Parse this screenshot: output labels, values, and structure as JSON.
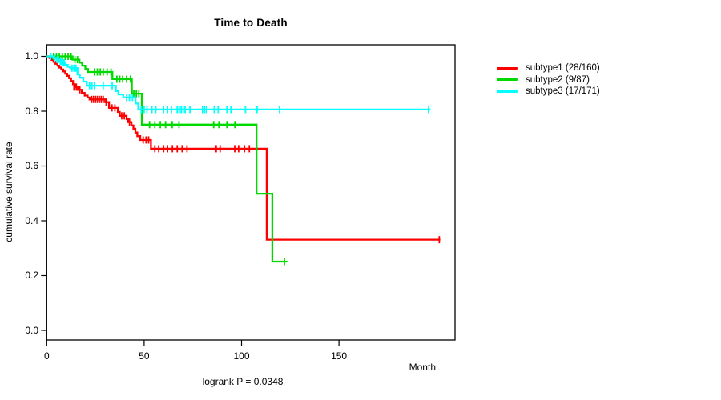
{
  "window": {
    "title": "Time to Death"
  },
  "header": {
    "title": "Time to Death"
  },
  "footer": {
    "logrank_text": "logrank P = 0.0348"
  },
  "axes": {
    "x": {
      "title": "Month",
      "tick_labels": [
        "0",
        "50",
        "100",
        "150"
      ]
    },
    "y": {
      "title": "cumulative survival rate",
      "tick_labels": [
        "1.0",
        "0.8",
        "0.6",
        "0.4",
        "0.2",
        "0.0"
      ]
    }
  },
  "legend": {
    "items": [
      {
        "label": "subtype1 (28/160)",
        "color": "#ff0000"
      },
      {
        "label": "subtype2 (9/87)",
        "color": "#00d900"
      },
      {
        "label": "subtype3 (17/171)",
        "color": "#00ffff"
      }
    ]
  },
  "chart_data": {
    "type": "line",
    "subtype": "kaplan-meier-step",
    "title": "Time to Death",
    "xlabel": "Month",
    "ylabel": "cumulative survival rate",
    "xlim": [
      0,
      210
    ],
    "ylim": [
      0.0,
      1.0
    ],
    "x_ticks": [
      0,
      50,
      100,
      150
    ],
    "y_ticks": [
      1.0,
      0.8,
      0.6,
      0.4,
      0.2,
      0.0
    ],
    "grid": false,
    "legend_position": "right-outside",
    "annotations": [
      "logrank P = 0.0348"
    ],
    "frame_color": "#000000",
    "series": [
      {
        "name": "subtype1",
        "label": "subtype1 (28/160)",
        "color": "#ff0000",
        "events": 28,
        "n": 160,
        "points": [
          [
            0,
            1.0
          ],
          [
            1.5,
            0.994
          ],
          [
            2.5,
            0.987
          ],
          [
            3.5,
            0.98
          ],
          [
            4.5,
            0.973
          ],
          [
            5.5,
            0.966
          ],
          [
            6.5,
            0.959
          ],
          [
            7.5,
            0.952
          ],
          [
            8.5,
            0.945
          ],
          [
            9.5,
            0.937
          ],
          [
            10.5,
            0.929
          ],
          [
            11.5,
            0.92
          ],
          [
            12.5,
            0.91
          ],
          [
            13.5,
            0.898
          ],
          [
            14.5,
            0.888
          ],
          [
            16,
            0.878
          ],
          [
            18,
            0.867
          ],
          [
            19.5,
            0.857
          ],
          [
            21,
            0.85
          ],
          [
            22,
            0.843
          ],
          [
            30,
            0.833
          ],
          [
            32,
            0.812
          ],
          [
            36.5,
            0.797
          ],
          [
            37.5,
            0.783
          ],
          [
            41,
            0.771
          ],
          [
            41.8,
            0.76
          ],
          [
            43.5,
            0.748
          ],
          [
            44.5,
            0.736
          ],
          [
            45.5,
            0.722
          ],
          [
            46.5,
            0.709
          ],
          [
            48,
            0.695
          ],
          [
            53.5,
            0.663
          ],
          [
            112.9,
            0.331
          ]
        ],
        "end": [
          202,
          0.331
        ],
        "censors": [
          [
            14,
            0.888
          ],
          [
            15.2,
            0.888
          ],
          [
            17,
            0.878
          ],
          [
            23,
            0.843
          ],
          [
            24,
            0.843
          ],
          [
            25,
            0.843
          ],
          [
            26,
            0.843
          ],
          [
            27,
            0.843
          ],
          [
            28,
            0.843
          ],
          [
            29,
            0.843
          ],
          [
            30.5,
            0.833
          ],
          [
            33.5,
            0.812
          ],
          [
            35,
            0.812
          ],
          [
            38.5,
            0.783
          ],
          [
            39.8,
            0.783
          ],
          [
            42.5,
            0.76
          ],
          [
            49.5,
            0.695
          ],
          [
            51,
            0.695
          ],
          [
            52.3,
            0.695
          ],
          [
            55.5,
            0.663
          ],
          [
            57.5,
            0.663
          ],
          [
            60,
            0.663
          ],
          [
            62,
            0.663
          ],
          [
            64.5,
            0.663
          ],
          [
            67,
            0.663
          ],
          [
            69.5,
            0.663
          ],
          [
            72,
            0.663
          ],
          [
            87,
            0.663
          ],
          [
            89,
            0.663
          ],
          [
            96.5,
            0.663
          ],
          [
            98.5,
            0.663
          ],
          [
            101.5,
            0.663
          ],
          [
            104,
            0.663
          ],
          [
            201.5,
            0.331
          ]
        ]
      },
      {
        "name": "subtype2",
        "label": "subtype2 (9/87)",
        "color": "#00d900",
        "events": 9,
        "n": 87,
        "points": [
          [
            0,
            1.0
          ],
          [
            13.3,
            0.988
          ],
          [
            16.8,
            0.977
          ],
          [
            18.2,
            0.966
          ],
          [
            19.8,
            0.954
          ],
          [
            21.2,
            0.943
          ],
          [
            33.7,
            0.917
          ],
          [
            43.7,
            0.864
          ],
          [
            48.8,
            0.751
          ],
          [
            107.7,
            0.499
          ],
          [
            115.8,
            0.251
          ]
        ],
        "end": [
          123.5,
          0.251
        ],
        "censors": [
          [
            3.5,
            1.0
          ],
          [
            5,
            1.0
          ],
          [
            6.5,
            1.0
          ],
          [
            8,
            1.0
          ],
          [
            9.5,
            1.0
          ],
          [
            11,
            1.0
          ],
          [
            12.5,
            1.0
          ],
          [
            14.5,
            0.988
          ],
          [
            15.8,
            0.988
          ],
          [
            24.5,
            0.943
          ],
          [
            26,
            0.943
          ],
          [
            27.5,
            0.943
          ],
          [
            29,
            0.943
          ],
          [
            31,
            0.943
          ],
          [
            33,
            0.943
          ],
          [
            36,
            0.917
          ],
          [
            37.5,
            0.917
          ],
          [
            39,
            0.917
          ],
          [
            41,
            0.917
          ],
          [
            43,
            0.917
          ],
          [
            44.7,
            0.864
          ],
          [
            46,
            0.864
          ],
          [
            47.3,
            0.864
          ],
          [
            52.8,
            0.751
          ],
          [
            55.5,
            0.751
          ],
          [
            58.3,
            0.751
          ],
          [
            61,
            0.751
          ],
          [
            64.4,
            0.751
          ],
          [
            67.9,
            0.751
          ],
          [
            85.7,
            0.751
          ],
          [
            88.4,
            0.751
          ],
          [
            92.5,
            0.751
          ],
          [
            96.6,
            0.751
          ],
          [
            122,
            0.251
          ]
        ]
      },
      {
        "name": "subtype3",
        "label": "subtype3 (17/171)",
        "color": "#00ffff",
        "events": 17,
        "n": 171,
        "points": [
          [
            0,
            1.0
          ],
          [
            3.5,
            0.994
          ],
          [
            5,
            0.988
          ],
          [
            6.5,
            0.982
          ],
          [
            8,
            0.976
          ],
          [
            9.5,
            0.969
          ],
          [
            10.8,
            0.962
          ],
          [
            12,
            0.957
          ],
          [
            15.8,
            0.934
          ],
          [
            17,
            0.922
          ],
          [
            18.8,
            0.908
          ],
          [
            20.5,
            0.893
          ],
          [
            35.5,
            0.873
          ],
          [
            36.8,
            0.861
          ],
          [
            39.3,
            0.85
          ],
          [
            45.6,
            0.828
          ],
          [
            47,
            0.806
          ]
        ],
        "end": [
          197,
          0.806
        ],
        "censors": [
          [
            2,
            1.0
          ],
          [
            4,
            0.994
          ],
          [
            5.5,
            0.988
          ],
          [
            6,
            0.988
          ],
          [
            7,
            0.982
          ],
          [
            7.5,
            0.982
          ],
          [
            8.5,
            0.976
          ],
          [
            9,
            0.976
          ],
          [
            13,
            0.957
          ],
          [
            14,
            0.957
          ],
          [
            15,
            0.957
          ],
          [
            22,
            0.893
          ],
          [
            23.2,
            0.893
          ],
          [
            24.5,
            0.893
          ],
          [
            29,
            0.893
          ],
          [
            33.6,
            0.893
          ],
          [
            41,
            0.85
          ],
          [
            42.5,
            0.85
          ],
          [
            44,
            0.85
          ],
          [
            48.5,
            0.806
          ],
          [
            50,
            0.806
          ],
          [
            51.5,
            0.806
          ],
          [
            54,
            0.806
          ],
          [
            56,
            0.806
          ],
          [
            60,
            0.806
          ],
          [
            62,
            0.806
          ],
          [
            64,
            0.806
          ],
          [
            67,
            0.806
          ],
          [
            68,
            0.806
          ],
          [
            69,
            0.806
          ],
          [
            70,
            0.806
          ],
          [
            71,
            0.806
          ],
          [
            73.5,
            0.806
          ],
          [
            80,
            0.806
          ],
          [
            81,
            0.806
          ],
          [
            82,
            0.806
          ],
          [
            86,
            0.806
          ],
          [
            88,
            0.806
          ],
          [
            92.5,
            0.806
          ],
          [
            94.5,
            0.806
          ],
          [
            102,
            0.806
          ],
          [
            108,
            0.806
          ],
          [
            119.5,
            0.806
          ],
          [
            196,
            0.806
          ]
        ]
      }
    ]
  }
}
